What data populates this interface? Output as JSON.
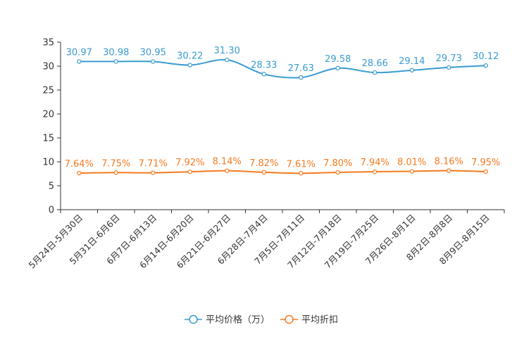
{
  "chart_data": {
    "type": "line",
    "title": "",
    "xlabel": "",
    "ylabel": "",
    "ylim": [
      0,
      35
    ],
    "yticks": [
      0,
      5,
      10,
      15,
      20,
      25,
      30,
      35
    ],
    "grid": false,
    "legend_position": "bottom",
    "categories": [
      "5月24日-5月30日",
      "5月31日-6月6日",
      "6月7日-6月13日",
      "6月14日-6月20日",
      "6月21日-6月27日",
      "6月28日-7月4日",
      "7月5日-7月11日",
      "7月12日-7月18日",
      "7月19日-7月25日",
      "7月26日-8月1日",
      "8月2日-8月8日",
      "8月9日-8月15日"
    ],
    "series": [
      {
        "name": "平均价格（万）",
        "color": "#3a9bd0",
        "values": [
          30.97,
          30.98,
          30.95,
          30.22,
          31.3,
          28.33,
          27.63,
          29.58,
          28.66,
          29.14,
          29.73,
          30.12
        ],
        "labels": [
          "30.97",
          "30.98",
          "30.95",
          "30.22",
          "31.30",
          "28.33",
          "27.63",
          "29.58",
          "28.66",
          "29.14",
          "29.73",
          "30.12"
        ]
      },
      {
        "name": "平均折扣",
        "color": "#f47a1f",
        "values": [
          7.64,
          7.75,
          7.71,
          7.92,
          8.14,
          7.82,
          7.61,
          7.8,
          7.94,
          8.01,
          8.16,
          7.95
        ],
        "labels": [
          "7.64%",
          "7.75%",
          "7.71%",
          "7.92%",
          "8.14%",
          "7.82%",
          "7.61%",
          "7.80%",
          "7.94%",
          "8.01%",
          "8.16%",
          "7.95%"
        ]
      }
    ]
  }
}
